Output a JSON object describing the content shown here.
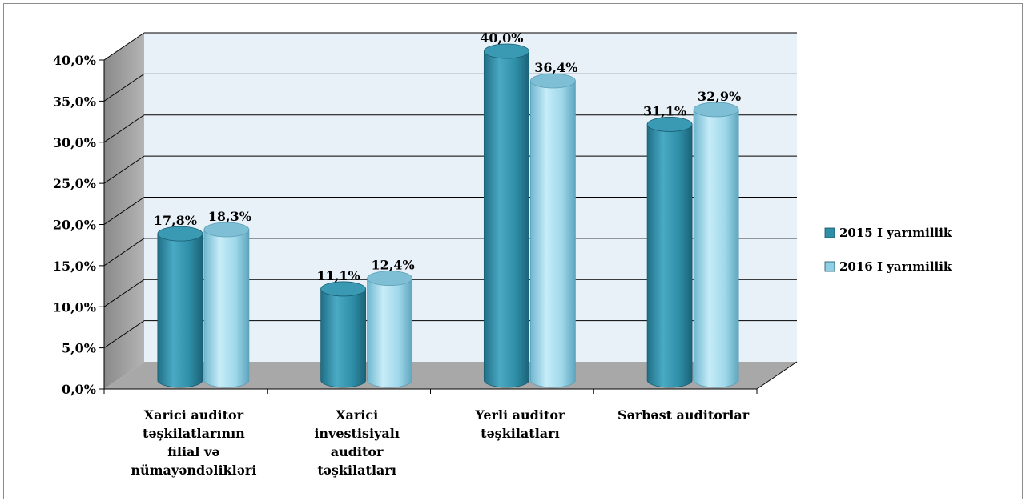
{
  "chart_data": {
    "type": "bar",
    "style": "3d-cylinder",
    "categories": [
      [
        "Xarici auditor",
        "təşkilatlarının",
        "filial və",
        "nümayəndəlikləri"
      ],
      [
        "Xarici",
        "investisiyalı",
        "auditor",
        "təşkilatları"
      ],
      [
        "Yerli auditor",
        "təşkilatları"
      ],
      [
        "Sərbəst auditorlar"
      ]
    ],
    "series": [
      {
        "name": "2015 I yarımillik",
        "values": [
          17.8,
          11.1,
          40.0,
          31.1
        ],
        "labels": [
          "17,8%",
          "11,1%",
          "40,0%",
          "31,1%"
        ],
        "color": "#2f8fa8"
      },
      {
        "name": "2016 I yarımillik",
        "values": [
          18.3,
          12.4,
          36.4,
          32.9
        ],
        "labels": [
          "18,3%",
          "12,4%",
          "36,4%",
          "32,9%"
        ],
        "color": "#8fd0e6"
      }
    ],
    "ylim": [
      0,
      40
    ],
    "yticks": [
      "0,0%",
      "5,0%",
      "10,0%",
      "15,0%",
      "20,0%",
      "25,0%",
      "30,0%",
      "35,0%",
      "40,0%"
    ],
    "grid": true,
    "legend": "right",
    "colors": {
      "back_wall": "#e8f0f8",
      "side_wall": "#9a9a9a",
      "floor": "#a8a8a8",
      "grid": "#000000"
    }
  }
}
